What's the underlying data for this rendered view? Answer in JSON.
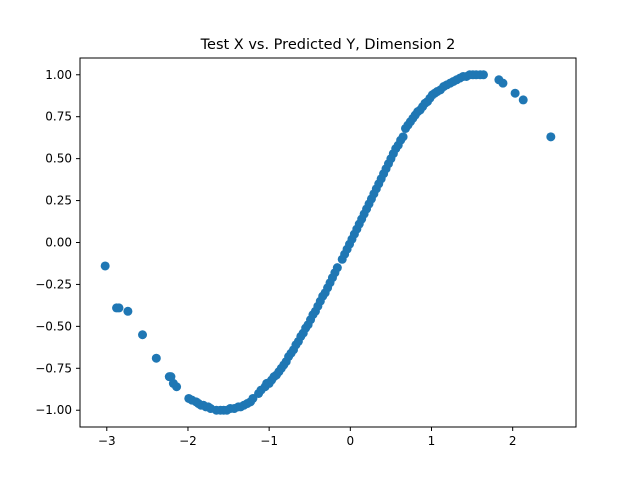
{
  "chart_data": {
    "type": "scatter",
    "title": "Test X vs. Predicted Y, Dimension 2",
    "xlabel": "",
    "ylabel": "",
    "xlim": [
      -3.33,
      2.78
    ],
    "ylim": [
      -1.1,
      1.1
    ],
    "xticks": [
      -3,
      -2,
      -1,
      0,
      1,
      2
    ],
    "xtick_labels": [
      "−3",
      "−2",
      "−1",
      "0",
      "1",
      "2"
    ],
    "yticks": [
      -1.0,
      -0.75,
      -0.5,
      -0.25,
      0.0,
      0.25,
      0.5,
      0.75,
      1.0
    ],
    "ytick_labels": [
      "−1.00",
      "−0.75",
      "−0.50",
      "−0.25",
      "0.00",
      "0.25",
      "0.50",
      "0.75",
      "1.00"
    ],
    "grid": false,
    "legend": false,
    "marker_color": "#1f77b4",
    "series": [
      {
        "x": [
          -3.02,
          -2.88,
          -2.85,
          -2.74,
          -2.56,
          -2.39,
          -2.23,
          -2.21,
          -2.18,
          -2.14,
          -1.99,
          -1.95,
          -1.9,
          -1.87,
          -1.84,
          -1.81,
          -1.78,
          -1.75,
          -1.72,
          -1.65,
          -1.6,
          -1.56,
          -1.52,
          -1.48,
          -1.43,
          -1.38,
          -1.35,
          -1.31,
          -1.27,
          -1.23,
          -1.2,
          -1.13,
          -1.1,
          -1.05,
          -1.03,
          -1.0,
          -0.97,
          -0.94,
          -0.91,
          -0.88,
          -0.85,
          -0.82,
          -0.79,
          -0.76,
          -0.73,
          -0.7,
          -0.67,
          -0.64,
          -0.61,
          -0.58,
          -0.55,
          -0.52,
          -0.49,
          -0.46,
          -0.43,
          -0.4,
          -0.37,
          -0.34,
          -0.31,
          -0.28,
          -0.25,
          -0.22,
          -0.19,
          -0.16,
          -0.1,
          -0.07,
          -0.04,
          -0.01,
          0.02,
          0.05,
          0.08,
          0.11,
          0.14,
          0.17,
          0.2,
          0.23,
          0.26,
          0.29,
          0.32,
          0.35,
          0.38,
          0.41,
          0.44,
          0.47,
          0.5,
          0.53,
          0.56,
          0.59,
          0.62,
          0.65,
          0.68,
          0.71,
          0.74,
          0.77,
          0.8,
          0.83,
          0.86,
          0.89,
          0.92,
          0.95,
          0.98,
          1.01,
          1.04,
          1.07,
          1.11,
          1.15,
          1.19,
          1.23,
          1.27,
          1.31,
          1.35,
          1.39,
          1.43,
          1.47,
          1.51,
          1.55,
          1.6,
          1.64,
          1.83,
          1.88,
          2.03,
          2.13,
          2.47
        ],
        "y": [
          -0.14,
          -0.39,
          -0.39,
          -0.41,
          -0.55,
          -0.69,
          -0.8,
          -0.8,
          -0.84,
          -0.86,
          -0.93,
          -0.94,
          -0.95,
          -0.96,
          -0.97,
          -0.97,
          -0.98,
          -0.98,
          -0.99,
          -1.0,
          -1.0,
          -1.0,
          -1.0,
          -0.99,
          -0.99,
          -0.98,
          -0.98,
          -0.97,
          -0.96,
          -0.95,
          -0.93,
          -0.9,
          -0.88,
          -0.86,
          -0.84,
          -0.84,
          -0.82,
          -0.8,
          -0.79,
          -0.77,
          -0.75,
          -0.73,
          -0.71,
          -0.68,
          -0.66,
          -0.64,
          -0.61,
          -0.59,
          -0.56,
          -0.54,
          -0.51,
          -0.49,
          -0.46,
          -0.43,
          -0.41,
          -0.38,
          -0.35,
          -0.32,
          -0.3,
          -0.27,
          -0.24,
          -0.21,
          -0.18,
          -0.15,
          -0.1,
          -0.07,
          -0.04,
          -0.01,
          0.02,
          0.05,
          0.08,
          0.11,
          0.14,
          0.17,
          0.2,
          0.23,
          0.26,
          0.29,
          0.32,
          0.35,
          0.38,
          0.41,
          0.44,
          0.47,
          0.5,
          0.53,
          0.56,
          0.58,
          0.61,
          0.63,
          0.68,
          0.7,
          0.72,
          0.74,
          0.76,
          0.78,
          0.79,
          0.81,
          0.83,
          0.84,
          0.86,
          0.88,
          0.89,
          0.9,
          0.91,
          0.93,
          0.94,
          0.95,
          0.96,
          0.97,
          0.98,
          0.99,
          0.99,
          1.0,
          1.0,
          1.0,
          1.0,
          1.0,
          0.97,
          0.95,
          0.89,
          0.85,
          0.63
        ]
      }
    ]
  }
}
